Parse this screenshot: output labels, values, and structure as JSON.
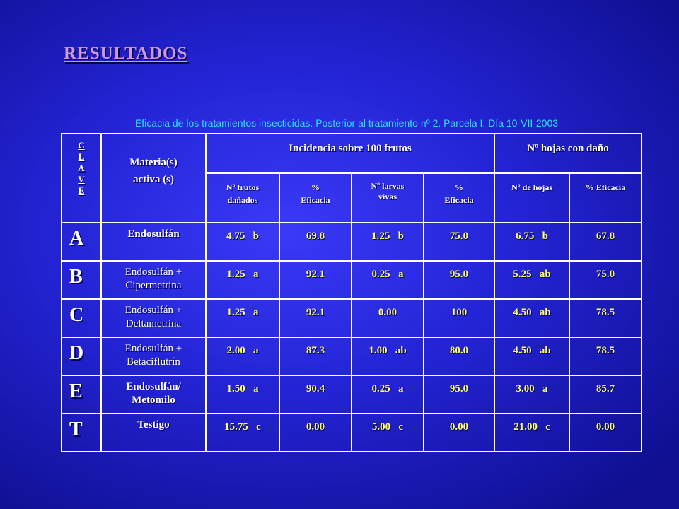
{
  "title": "RESULTADOS",
  "subtitle": "Eficacia de los tratamientos insecticidas. Posterior al tratamiento nº 2. Parcela I. Día 10-VII-2003",
  "header": {
    "clave_letters": [
      "C",
      "L",
      "A",
      "V",
      "E"
    ],
    "materia_line1": "Materia(s)",
    "materia_line2": "activa (s)",
    "incidencia": "Incidencia sobre 100 frutos",
    "hojas": "Nº hojas con daño",
    "sub": {
      "frutos_line1": "Nº frutos",
      "frutos_line2": "dañados",
      "pct1_line1": "%",
      "pct1_line2": "Eficacia",
      "larvas_line1": "Nº larvas",
      "larvas_line2": "vivas",
      "pct2_line1": "%",
      "pct2_line2": "Eficacia",
      "nhojas": "Nº de hojas",
      "pct3": "% Eficacia"
    }
  },
  "rows": [
    {
      "key": "A",
      "mat1": "Endosulfán",
      "mat2": "",
      "frutos": "4.75   b",
      "ef1": "69.8",
      "larvas": "1.25   b",
      "ef2": "75.0",
      "hojas": "6.75   b",
      "ef3": "67.8"
    },
    {
      "key": "B",
      "mat1": "Endosulfán +",
      "mat2": "Cipermetrina",
      "frutos": "1.25   a",
      "ef1": "92.1",
      "larvas": "0.25   a",
      "ef2": "95.0",
      "hojas": "5.25   ab",
      "ef3": "75.0"
    },
    {
      "key": "C",
      "mat1": "Endosulfán +",
      "mat2": "Deltametrina",
      "frutos": "1.25   a",
      "ef1": "92.1",
      "larvas": "0.00",
      "ef2": "100",
      "hojas": "4.50   ab",
      "ef3": "78.5"
    },
    {
      "key": "D",
      "mat1": "Endosulfán +",
      "mat2": "Betaciflutrín",
      "frutos": "2.00   a",
      "ef1": "87.3",
      "larvas": "1.00   ab",
      "ef2": "80.0",
      "hojas": "4.50   ab",
      "ef3": "78.5"
    },
    {
      "key": "E",
      "mat1": "Endosulfán/",
      "mat2": "Metomilo",
      "frutos": "1.50   a",
      "ef1": "90.4",
      "larvas": "0.25   a",
      "ef2": "95.0",
      "hojas": "3.00   a",
      "ef3": "85.7"
    },
    {
      "key": "T",
      "mat1": "Testigo",
      "mat2": "",
      "frutos": "15.75   c",
      "ef1": "0.00",
      "larvas": "5.00   c",
      "ef2": "0.00",
      "hojas": "21.00   c",
      "ef3": "0.00"
    }
  ]
}
